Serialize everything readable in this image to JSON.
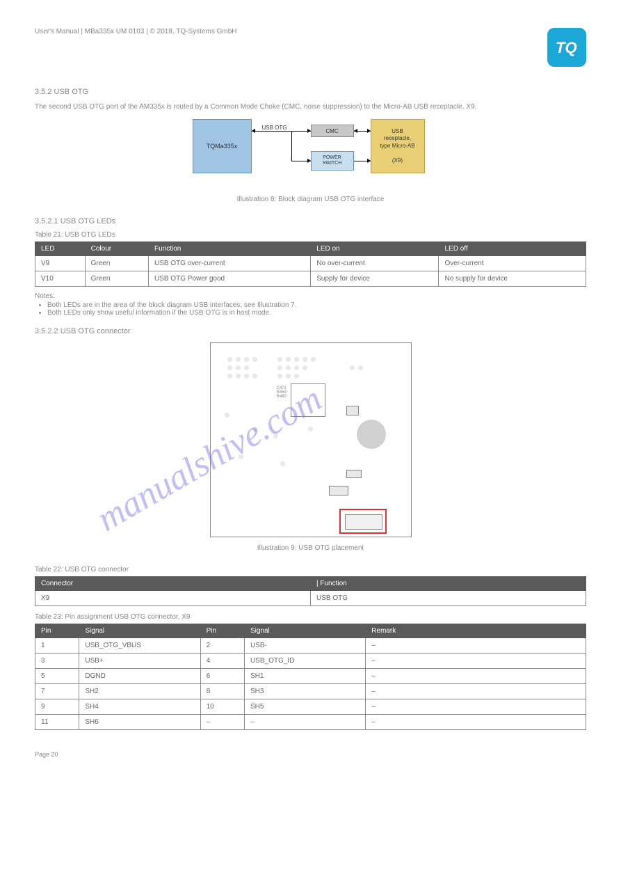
{
  "header": {
    "doc_title": "User's Manual | MBa335x UM 0103 | © 2018, TQ-Systems GmbH"
  },
  "page_number": "Page 20",
  "logo": {
    "bg_color": "#1ba8d6",
    "text": "TQ"
  },
  "section1": {
    "title": "3.5.2 USB OTG",
    "body": "The second USB OTG port of the AM335x is routed by a Common Mode Choke (CMC, noise suppression) to the Micro-AB USB receptacle, X9."
  },
  "diagram": {
    "main_block": "TQMa335x",
    "usb_otg_label": "USB OTG",
    "cmc": "CMC",
    "power": "POWER SWITCH",
    "usb": "USB receptacle, type Micro-AB\n\n(X9)",
    "colors": {
      "main": "#a0c4e4",
      "main_border": "#6090bb",
      "cmc": "#c8c8c8",
      "power": "#c8dff0",
      "usb": "#e8cf76"
    }
  },
  "illustration1_caption": "Illustration 8: Block diagram USB OTG interface",
  "section_leds": {
    "heading": "3.5.2.1 USB OTG LEDs",
    "table_caption": "Table 21: USB OTG LEDs",
    "columns": [
      "LED",
      "Colour",
      "Function",
      "LED on",
      "LED off"
    ],
    "rows": [
      [
        "V9",
        "Green",
        "USB OTG over-current",
        "No over-current",
        "Over-current"
      ],
      [
        "V10",
        "Green",
        "USB OTG Power good",
        "Supply for device",
        "No supply for device"
      ]
    ],
    "notes": [
      "Both LEDs are in the area of the block diagram USB interfaces; see Illustration 7.",
      "Both LEDs only show useful information if the USB OTG is in host mode."
    ]
  },
  "section_connector": {
    "heading": "3.5.2.2 USB OTG connector",
    "illustration_caption": "Illustration 9: USB OTG placement",
    "table22_caption": "Table 22: USB OTG connector",
    "table22_columns": [
      "Connector",
      "| Function"
    ],
    "table22_rows": [
      [
        "X9",
        "USB OTG"
      ]
    ],
    "table23_caption": "Table 23: Pin assignment USB OTG connector, X9",
    "table23_columns": [
      "Pin",
      "Signal",
      "Pin",
      "Signal",
      "Remark"
    ],
    "table23_rows": [
      [
        "1",
        "USB_OTG_VBUS",
        "2",
        "USB-",
        "–"
      ],
      [
        "3",
        "USB+",
        "4",
        "USB_OTG_ID",
        "–"
      ],
      [
        "5",
        "DGND",
        "6",
        "SH1",
        "–"
      ],
      [
        "7",
        "SH2",
        "8",
        "SH3",
        "–"
      ],
      [
        "9",
        "SH4",
        "10",
        "SH5",
        "–"
      ],
      [
        "11",
        "SH6",
        "–",
        "–",
        "–"
      ]
    ]
  },
  "watermark": "manualshive.com",
  "styles": {
    "th_bg": "#5a5a5a",
    "highlight": "#e03030",
    "watermark_color": "#8080e8"
  }
}
